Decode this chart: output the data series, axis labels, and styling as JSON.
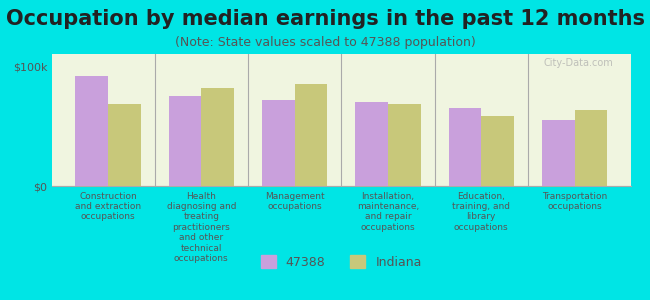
{
  "title": "Occupation by median earnings in the past 12 months",
  "subtitle": "(Note: State values scaled to 47388 population)",
  "background_color": "#00e5e5",
  "plot_bg_color": "#f0f5e0",
  "bar_color_47388": "#c9a0dc",
  "bar_color_indiana": "#c8c87a",
  "categories": [
    "Construction\nand extraction\noccupations",
    "Health\ndiagnosing and\ntreating\npractitioners\nand other\ntechnical\noccupations",
    "Management\noccupations",
    "Installation,\nmaintenance,\nand repair\noccupations",
    "Education,\ntraining, and\nlibrary\noccupations",
    "Transportation\noccupations"
  ],
  "values_47388": [
    92000,
    75000,
    72000,
    70000,
    65000,
    55000
  ],
  "values_indiana": [
    68000,
    82000,
    85000,
    68000,
    58000,
    63000
  ],
  "ylim": [
    0,
    110000
  ],
  "yticks": [
    0,
    100000
  ],
  "ytick_labels": [
    "$0",
    "$100k"
  ],
  "legend_labels": [
    "47388",
    "Indiana"
  ],
  "watermark": "City-Data.com",
  "title_fontsize": 15,
  "subtitle_fontsize": 9,
  "axis_label_color": "#555555",
  "tick_label_color": "#555555"
}
